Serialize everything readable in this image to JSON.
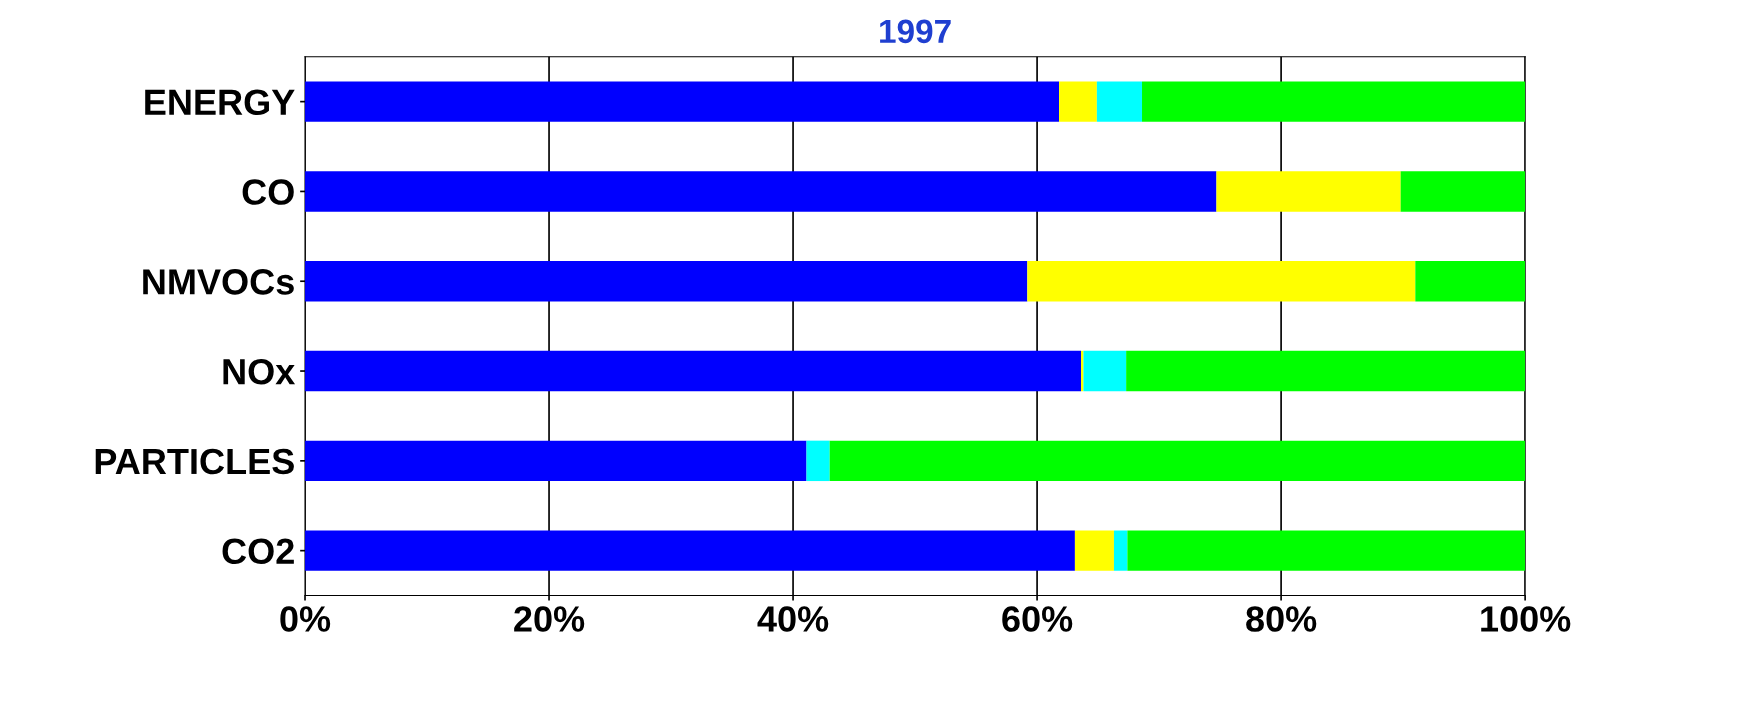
{
  "chart_data": {
    "type": "bar",
    "orientation": "horizontal",
    "stacked": true,
    "title": "1997",
    "categories": [
      "ENERGY",
      "CO",
      "NMVOCs",
      "NOx",
      "PARTICLES",
      "CO2"
    ],
    "series": [
      {
        "color": "#0000ff",
        "values": [
          61.8,
          74.7,
          59.2,
          63.6,
          41.1,
          63.1
        ]
      },
      {
        "color": "#ffff00",
        "values": [
          3.1,
          15.1,
          31.8,
          0.2,
          0,
          3.2
        ]
      },
      {
        "color": "#00ffff",
        "values": [
          3.7,
          0,
          0,
          3.5,
          1.9,
          1.1
        ]
      },
      {
        "color": "#00ff00",
        "values": [
          31.4,
          10.2,
          9.0,
          32.7,
          57.0,
          32.6
        ]
      }
    ],
    "xlim": [
      0,
      100
    ],
    "xticks": [
      {
        "value": 0,
        "label": "0%"
      },
      {
        "value": 20,
        "label": "20%"
      },
      {
        "value": 40,
        "label": "40%"
      },
      {
        "value": 60,
        "label": "60%"
      },
      {
        "value": 80,
        "label": "80%"
      },
      {
        "value": 100,
        "label": "100%"
      }
    ],
    "grid": "x",
    "legend": false
  }
}
